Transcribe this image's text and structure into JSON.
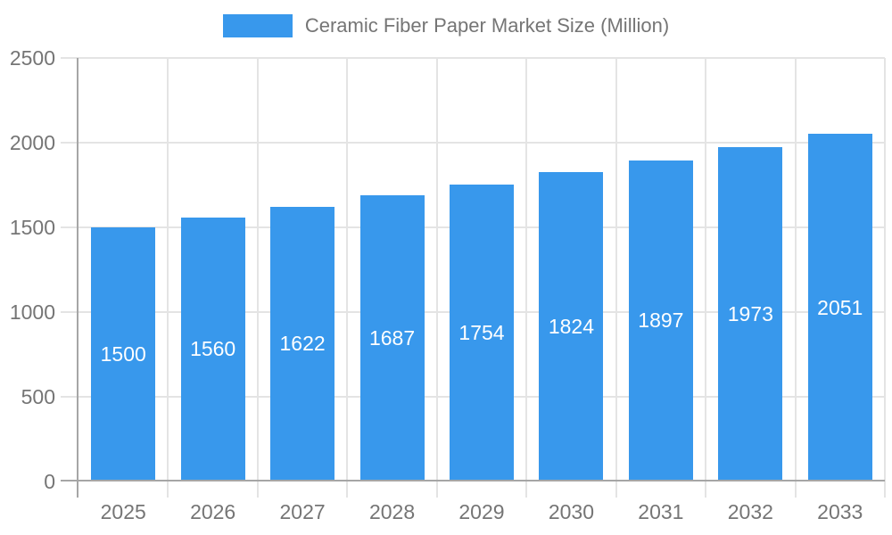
{
  "chart_data": {
    "type": "bar",
    "title": "Ceramic Fiber Paper Market Size (Million)",
    "legend": {
      "position": "top",
      "label": "Ceramic Fiber Paper Market Size (Million)"
    },
    "categories": [
      "2025",
      "2026",
      "2027",
      "2028",
      "2029",
      "2030",
      "2031",
      "2032",
      "2033"
    ],
    "values": [
      1500,
      1560,
      1622,
      1687,
      1754,
      1824,
      1897,
      1973,
      2051
    ],
    "bar_labels": [
      "1500",
      "1560",
      "1622",
      "1687",
      "1754",
      "1824",
      "1897",
      "1973",
      "2051"
    ],
    "xlabel": "",
    "ylabel": "",
    "ylim": [
      0,
      2500
    ],
    "yticks": [
      0,
      500,
      1000,
      1500,
      2000,
      2500
    ],
    "grid": true,
    "colors": {
      "bar": "#3898EC",
      "bar_label_text": "#FFFFFF",
      "grid_line": "#E4E4E4",
      "axis_line": "#A6A6A6",
      "tick_text": "#757575",
      "background": "#FFFFFF"
    }
  }
}
